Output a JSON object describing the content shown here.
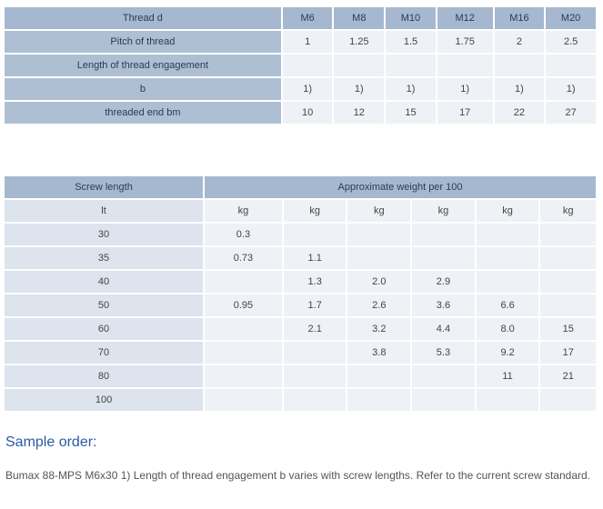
{
  "thread_table": {
    "header": {
      "label": "Thread d",
      "sizes": [
        "M6",
        "M8",
        "M10",
        "M12",
        "M16",
        "M20"
      ]
    },
    "rows": [
      {
        "label": "Pitch of thread",
        "values": [
          "1",
          "1.25",
          "1.5",
          "1.75",
          "2",
          "2.5"
        ]
      },
      {
        "label": "Length of thread engagement",
        "values": [
          "",
          "",
          "",
          "",
          "",
          ""
        ]
      },
      {
        "label": "b",
        "values": [
          "1)",
          "1)",
          "1)",
          "1)",
          "1)",
          "1)"
        ]
      },
      {
        "label": "threaded end bm",
        "values": [
          "10",
          "12",
          "15",
          "17",
          "22",
          "27"
        ]
      }
    ]
  },
  "weight_table": {
    "header_left": "Screw length",
    "header_right": "Approximate weight per 100",
    "subheader_left": "lt",
    "units": [
      "kg",
      "kg",
      "kg",
      "kg",
      "kg",
      "kg"
    ],
    "rows": [
      {
        "length": "30",
        "values": [
          "0.3",
          "",
          "",
          "",
          "",
          ""
        ]
      },
      {
        "length": "35",
        "values": [
          "0.73",
          "1.1",
          "",
          "",
          "",
          ""
        ]
      },
      {
        "length": "40",
        "values": [
          "",
          "1.3",
          "2.0",
          "2.9",
          "",
          ""
        ]
      },
      {
        "length": "50",
        "values": [
          "0.95",
          "1.7",
          "2.6",
          "3.6",
          "6.6",
          ""
        ]
      },
      {
        "length": "60",
        "values": [
          "",
          "2.1",
          "3.2",
          "4.4",
          "8.0",
          "15"
        ]
      },
      {
        "length": "70",
        "values": [
          "",
          "",
          "3.8",
          "5.3",
          "9.2",
          "17"
        ]
      },
      {
        "length": "80",
        "values": [
          "",
          "",
          "",
          "",
          "11",
          "21"
        ]
      },
      {
        "length": "100",
        "values": [
          "",
          "",
          "",
          "",
          "",
          ""
        ]
      }
    ]
  },
  "sample_order": {
    "title": "Sample order:",
    "text": "Bumax 88-MPS M6x30 1) Length of thread engagement b varies with screw lengths. Refer to the current screw standard."
  }
}
